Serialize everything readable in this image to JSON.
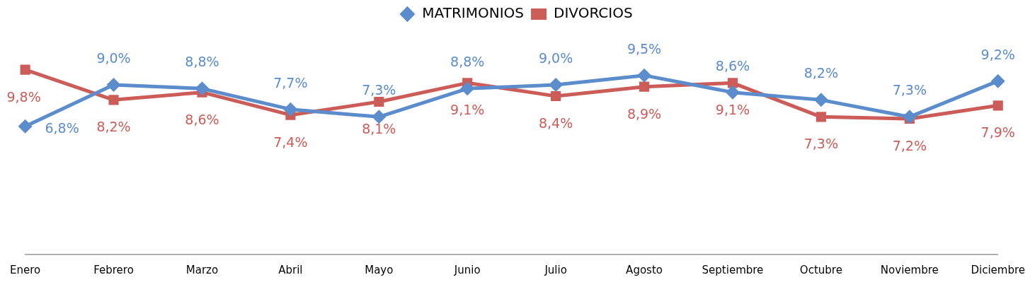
{
  "chart_data": {
    "type": "line",
    "categories": [
      "Enero",
      "Febrero",
      "Marzo",
      "Abril",
      "Mayo",
      "Junio",
      "Julio",
      "Agosto",
      "Septiembre",
      "Octubre",
      "Noviembre",
      "Diciembre"
    ],
    "series": [
      {
        "name": "MATRIMONIOS",
        "color": "#5b8ccb",
        "marker": "diamond",
        "values": [
          6.8,
          9.0,
          8.8,
          7.7,
          7.3,
          8.8,
          9.0,
          9.5,
          8.6,
          8.2,
          7.3,
          9.2
        ],
        "value_labels": [
          "6,8%",
          "9,0%",
          "8,8%",
          "7,7%",
          "7,3%",
          "8,8%",
          "9,0%",
          "9,5%",
          "8,6%",
          "8,2%",
          "7,3%",
          "9,2%"
        ]
      },
      {
        "name": "DIVORCIOS",
        "color": "#cc5c58",
        "marker": "square",
        "values": [
          9.8,
          8.2,
          8.6,
          7.4,
          8.1,
          9.1,
          8.4,
          8.9,
          9.1,
          7.3,
          7.2,
          7.9
        ],
        "value_labels": [
          "9,8%",
          "8,2%",
          "8,6%",
          "7,4%",
          "8,1%",
          "9,1%",
          "8,4%",
          "8,9%",
          "9,1%",
          "7,3%",
          "7,2%",
          "7,9%"
        ]
      }
    ],
    "tick_labels": "x",
    "grid": false,
    "legend": "top",
    "line_style": "solid"
  }
}
